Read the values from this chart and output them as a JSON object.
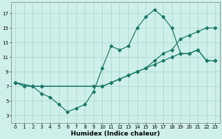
{
  "xlabel": "Humidex (Indice chaleur)",
  "bg_color": "#cff0ea",
  "grid_color": "#aad8d0",
  "line_color": "#1a7a6a",
  "xlim": [
    -0.5,
    23.5
  ],
  "ylim": [
    2.0,
    18.5
  ],
  "yticks": [
    3,
    5,
    7,
    9,
    11,
    13,
    15,
    17
  ],
  "xticks": [
    0,
    1,
    2,
    3,
    4,
    5,
    6,
    7,
    8,
    9,
    10,
    11,
    12,
    13,
    14,
    15,
    16,
    17,
    18,
    19,
    20,
    21,
    22,
    23
  ],
  "line1_x": [
    0,
    1,
    2,
    3,
    4,
    5,
    6,
    7,
    8,
    9,
    10,
    11,
    12,
    13,
    14,
    15,
    16,
    17,
    18,
    19,
    20,
    21,
    22,
    23
  ],
  "line1_y": [
    7.5,
    7.0,
    7.0,
    6.0,
    5.5,
    4.5,
    3.5,
    4.0,
    4.5,
    6.3,
    9.5,
    12.5,
    12.0,
    12.5,
    15.0,
    16.5,
    17.5,
    16.5,
    15.0,
    11.5,
    11.5,
    12.0,
    10.5,
    10.5
  ],
  "line2_x": [
    0,
    2,
    3,
    10,
    11,
    12,
    13,
    14,
    15,
    16,
    17,
    18,
    19,
    20,
    21,
    22,
    23
  ],
  "line2_y": [
    7.5,
    7.0,
    7.0,
    7.0,
    7.5,
    8.0,
    8.5,
    9.0,
    9.5,
    10.5,
    11.5,
    12.0,
    13.5,
    14.0,
    14.5,
    15.0,
    15.0
  ],
  "line3_x": [
    0,
    2,
    3,
    9,
    10,
    11,
    12,
    13,
    14,
    15,
    16,
    17,
    18,
    19,
    20,
    21,
    22,
    23
  ],
  "line3_y": [
    7.5,
    7.0,
    7.0,
    7.0,
    7.0,
    7.5,
    8.0,
    8.5,
    9.0,
    9.5,
    10.0,
    10.5,
    11.0,
    11.5,
    11.5,
    12.0,
    10.5,
    10.5
  ]
}
